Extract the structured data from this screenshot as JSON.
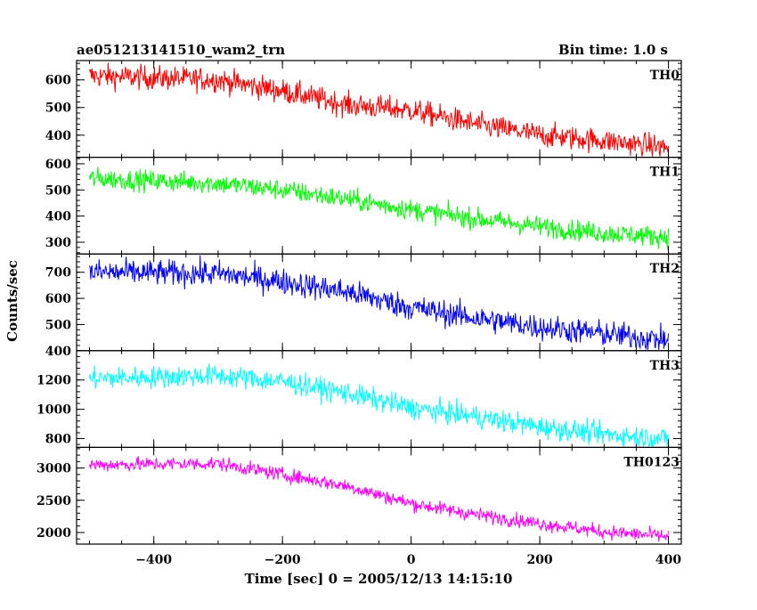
{
  "chart_data": {
    "type": "line",
    "title": "ae051213141510_wam2_trn",
    "subtitle": "Bin time: 1.0 s",
    "xlabel": "Time [sec] 0 = 2005/12/13 14:15:10",
    "ylabel": "Counts/sec",
    "xlim": [
      -520,
      420
    ],
    "x_ticks": [
      "-400",
      "-200",
      "0",
      "200",
      "400"
    ],
    "grid": false,
    "panels": [
      {
        "name": "TH0",
        "color": "#ff0000",
        "ylim": [
          320,
          670
        ],
        "y_ticks": [
          "400",
          "500",
          "600"
        ],
        "trend": [
          [
            -500,
            615
          ],
          [
            -300,
            600
          ],
          [
            -200,
            560
          ],
          [
            -100,
            510
          ],
          [
            0,
            490
          ],
          [
            100,
            440
          ],
          [
            200,
            400
          ],
          [
            300,
            380
          ],
          [
            400,
            355
          ]
        ],
        "noise": 22
      },
      {
        "name": "TH1",
        "color": "#00ff00",
        "ylim": [
          255,
          625
        ],
        "y_ticks": [
          "300",
          "400",
          "500",
          "600"
        ],
        "trend": [
          [
            -500,
            545
          ],
          [
            -300,
            525
          ],
          [
            -200,
            500
          ],
          [
            -100,
            465
          ],
          [
            0,
            425
          ],
          [
            100,
            390
          ],
          [
            200,
            360
          ],
          [
            300,
            335
          ],
          [
            400,
            320
          ]
        ],
        "noise": 20
      },
      {
        "name": "TH2",
        "color": "#0000ff",
        "ylim": [
          400,
          770
        ],
        "y_ticks": [
          "400",
          "500",
          "600",
          "700"
        ],
        "trend": [
          [
            -500,
            700
          ],
          [
            -300,
            695
          ],
          [
            -200,
            665
          ],
          [
            -100,
            625
          ],
          [
            0,
            565
          ],
          [
            100,
            525
          ],
          [
            200,
            490
          ],
          [
            300,
            465
          ],
          [
            400,
            440
          ]
        ],
        "noise": 25
      },
      {
        "name": "TH3",
        "color": "#00ffff",
        "ylim": [
          740,
          1400
        ],
        "y_ticks": [
          "800",
          "1000",
          "1200"
        ],
        "trend": [
          [
            -500,
            1210
          ],
          [
            -300,
            1230
          ],
          [
            -200,
            1190
          ],
          [
            -100,
            1110
          ],
          [
            0,
            1010
          ],
          [
            100,
            950
          ],
          [
            200,
            880
          ],
          [
            300,
            830
          ],
          [
            400,
            800
          ]
        ],
        "noise": 38
      },
      {
        "name": "TH0123",
        "color": "#ff00ff",
        "ylim": [
          1820,
          3320
        ],
        "y_ticks": [
          "2000",
          "2500",
          "3000"
        ],
        "trend": [
          [
            -500,
            3050
          ],
          [
            -300,
            3070
          ],
          [
            -200,
            2900
          ],
          [
            -100,
            2720
          ],
          [
            0,
            2450
          ],
          [
            100,
            2280
          ],
          [
            200,
            2140
          ],
          [
            300,
            2010
          ],
          [
            400,
            1940
          ]
        ],
        "noise": 55
      }
    ]
  }
}
